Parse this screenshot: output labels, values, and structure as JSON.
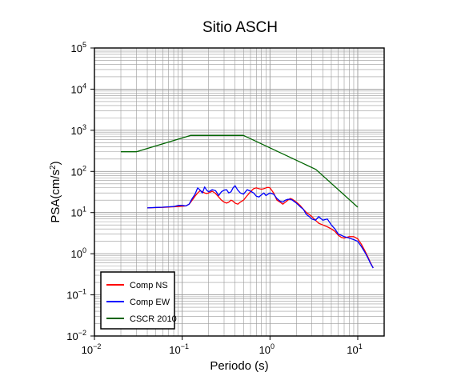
{
  "chart_data": {
    "type": "line",
    "title": "Sitio ASCH",
    "xlabel": "Periodo (s)",
    "ylabel": "PSA(cm/s2)",
    "x_scale": "log",
    "y_scale": "log",
    "xlim": [
      0.01,
      20
    ],
    "ylim": [
      0.01,
      100000
    ],
    "grid": true,
    "legend_position": "bottom-left",
    "x_ticks": [
      {
        "base": "10",
        "exp": "−2",
        "value": 0.01
      },
      {
        "base": "10",
        "exp": "−1",
        "value": 0.1
      },
      {
        "base": "10",
        "exp": "0",
        "value": 1
      },
      {
        "base": "10",
        "exp": "1",
        "value": 10
      }
    ],
    "y_ticks": [
      {
        "base": "10",
        "exp": "−2",
        "value": 0.01
      },
      {
        "base": "10",
        "exp": "−1",
        "value": 0.1
      },
      {
        "base": "10",
        "exp": "0",
        "value": 1
      },
      {
        "base": "10",
        "exp": "1",
        "value": 10
      },
      {
        "base": "10",
        "exp": "2",
        "value": 100
      },
      {
        "base": "10",
        "exp": "3",
        "value": 1000
      },
      {
        "base": "10",
        "exp": "4",
        "value": 10000
      },
      {
        "base": "10",
        "exp": "5",
        "value": 100000
      }
    ],
    "series": [
      {
        "name": "Comp NS",
        "color": "#ff0000",
        "x": [
          0.04,
          0.05,
          0.06,
          0.07,
          0.08,
          0.09,
          0.1,
          0.11,
          0.12,
          0.13,
          0.14,
          0.15,
          0.16,
          0.17,
          0.18,
          0.19,
          0.2,
          0.22,
          0.24,
          0.26,
          0.28,
          0.3,
          0.32,
          0.34,
          0.36,
          0.38,
          0.4,
          0.43,
          0.46,
          0.5,
          0.55,
          0.6,
          0.65,
          0.7,
          0.75,
          0.8,
          0.85,
          0.9,
          0.95,
          1.0,
          1.1,
          1.2,
          1.3,
          1.4,
          1.5,
          1.6,
          1.7,
          1.8,
          2.0,
          2.2,
          2.4,
          2.6,
          2.8,
          3.0,
          3.3,
          3.6,
          4.0,
          4.5,
          5.0,
          5.5,
          6.0,
          6.5,
          7.0,
          8.0,
          9.0,
          10.0,
          11.0,
          12.0,
          13.0,
          14.0,
          15.0
        ],
        "values": [
          13,
          13.2,
          13.4,
          13.6,
          13.8,
          14,
          14.2,
          14.5,
          16,
          20,
          25,
          30,
          34,
          32,
          30,
          29,
          30,
          33,
          29,
          24,
          20,
          18,
          17,
          18,
          20,
          19,
          17,
          16,
          18,
          20,
          26,
          32,
          38,
          40,
          38,
          37,
          38,
          40,
          41,
          40,
          30,
          20,
          18,
          16,
          18,
          20,
          22,
          21,
          18,
          15,
          12,
          10,
          9,
          8,
          6.5,
          5.5,
          5,
          4.5,
          4,
          3.5,
          2.8,
          2.5,
          2.4,
          2.6,
          2.6,
          2.3,
          1.7,
          1.2,
          0.85,
          0.6,
          0.45
        ]
      },
      {
        "name": "Comp EW",
        "color": "#0000ff",
        "x": [
          0.04,
          0.05,
          0.06,
          0.07,
          0.08,
          0.09,
          0.1,
          0.11,
          0.12,
          0.13,
          0.14,
          0.15,
          0.16,
          0.17,
          0.18,
          0.19,
          0.2,
          0.22,
          0.24,
          0.26,
          0.28,
          0.3,
          0.32,
          0.34,
          0.36,
          0.38,
          0.4,
          0.43,
          0.46,
          0.5,
          0.55,
          0.6,
          0.65,
          0.7,
          0.75,
          0.8,
          0.85,
          0.9,
          0.95,
          1.0,
          1.1,
          1.2,
          1.3,
          1.4,
          1.5,
          1.6,
          1.7,
          1.8,
          2.0,
          2.2,
          2.4,
          2.6,
          2.8,
          3.0,
          3.3,
          3.6,
          4.0,
          4.5,
          5.0,
          5.5,
          6.0,
          6.5,
          7.0,
          8.0,
          9.0,
          10.0,
          11.0,
          12.0,
          13.0,
          14.0,
          15.0
        ],
        "values": [
          13,
          13.3,
          13.5,
          13.8,
          14,
          15,
          15,
          14.5,
          16,
          22,
          28,
          40,
          35,
          30,
          42,
          35,
          32,
          36,
          34,
          26,
          32,
          35,
          36,
          30,
          32,
          40,
          45,
          35,
          30,
          28,
          36,
          33,
          30,
          25,
          24,
          27,
          30,
          26,
          28,
          30,
          28,
          22,
          19,
          18,
          20,
          21,
          21,
          20,
          17,
          14,
          12,
          9,
          8,
          7,
          6.5,
          8,
          6.5,
          7,
          5,
          4,
          3,
          2.8,
          2.6,
          2.4,
          2.2,
          2.0,
          1.5,
          1.1,
          0.8,
          0.58,
          0.45
        ]
      },
      {
        "name": "CSCR 2010",
        "color": "#006400",
        "x": [
          0.02,
          0.03,
          0.125,
          0.5,
          3.333,
          10.0
        ],
        "values": [
          300,
          300,
          750,
          750,
          112,
          13.5
        ]
      }
    ]
  }
}
